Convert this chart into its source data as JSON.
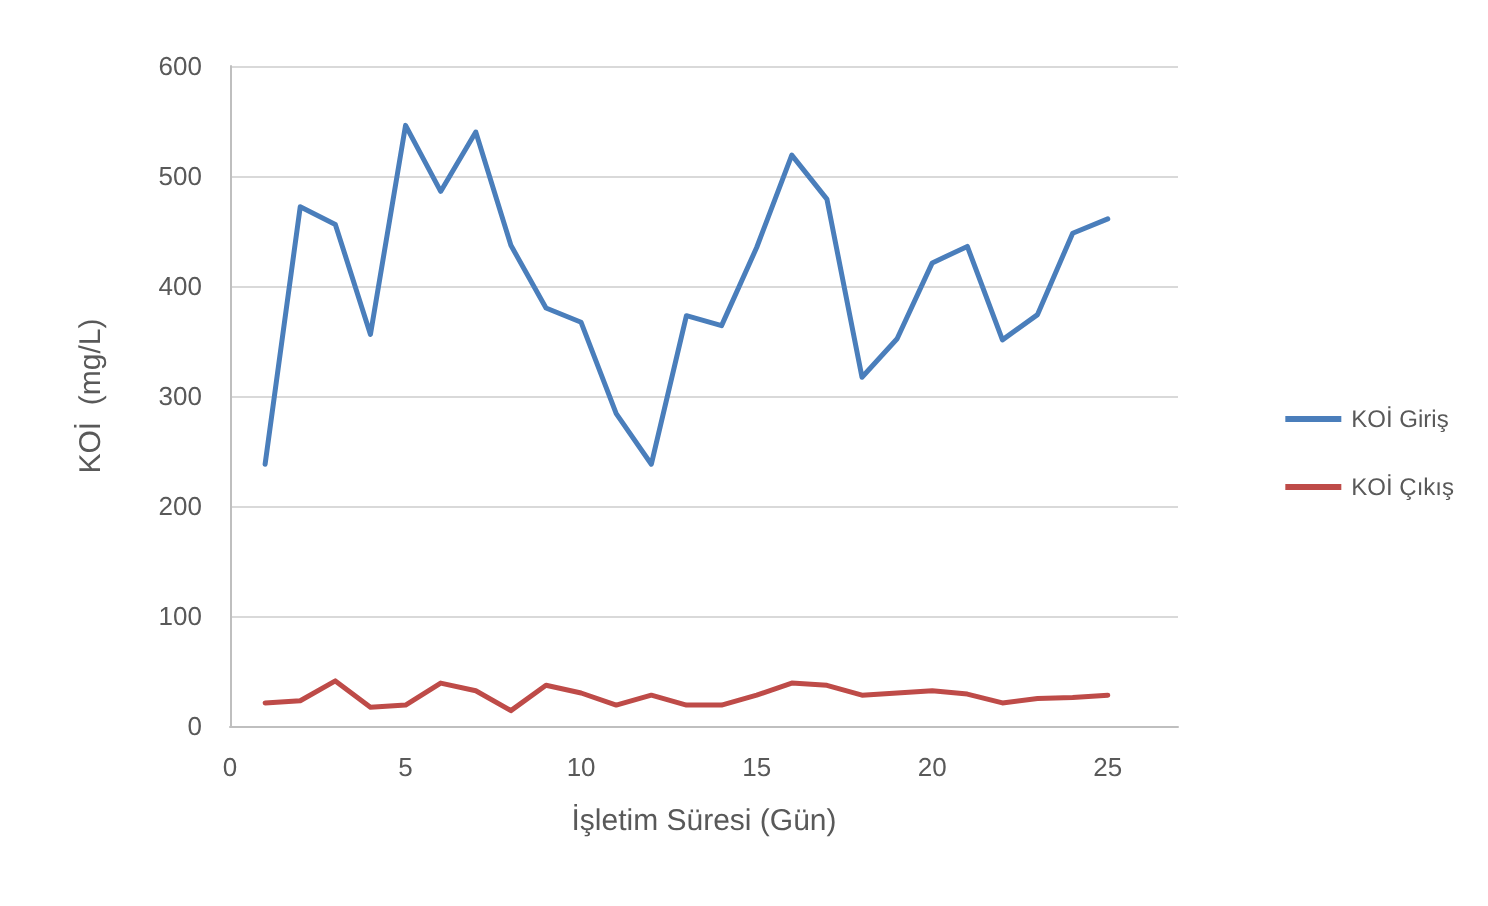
{
  "chart_data": {
    "type": "line",
    "xlabel": "İşletim Süresi (Gün)",
    "ylabel": "KOİ  (mg/L)",
    "x": [
      1,
      2,
      3,
      4,
      5,
      6,
      7,
      8,
      9,
      10,
      11,
      12,
      13,
      14,
      15,
      16,
      17,
      18,
      19,
      20,
      21,
      22,
      23,
      24,
      25
    ],
    "series": [
      {
        "name": "KOİ Giriş",
        "color": "#4a7ebb",
        "values": [
          238,
          472,
          456,
          356,
          546,
          486,
          540,
          437,
          380,
          367,
          284,
          238,
          373,
          364,
          435,
          519,
          479,
          317,
          352,
          421,
          436,
          351,
          374,
          448,
          461
        ]
      },
      {
        "name": "KOİ Çıkış",
        "color": "#be4b48",
        "values": [
          21,
          23,
          41,
          17,
          19,
          39,
          32,
          14,
          37,
          30,
          19,
          28,
          19,
          19,
          28,
          39,
          37,
          28,
          30,
          32,
          29,
          21,
          25,
          26,
          28
        ]
      }
    ],
    "xlim": [
      0,
      27
    ],
    "xticks": [
      0,
      5,
      10,
      15,
      20,
      25
    ],
    "ylim": [
      0,
      600
    ],
    "yticks": [
      0,
      100,
      200,
      300,
      400,
      500,
      600
    ],
    "grid": "y",
    "legend": "right",
    "marker": "none",
    "line_style": "solid"
  }
}
